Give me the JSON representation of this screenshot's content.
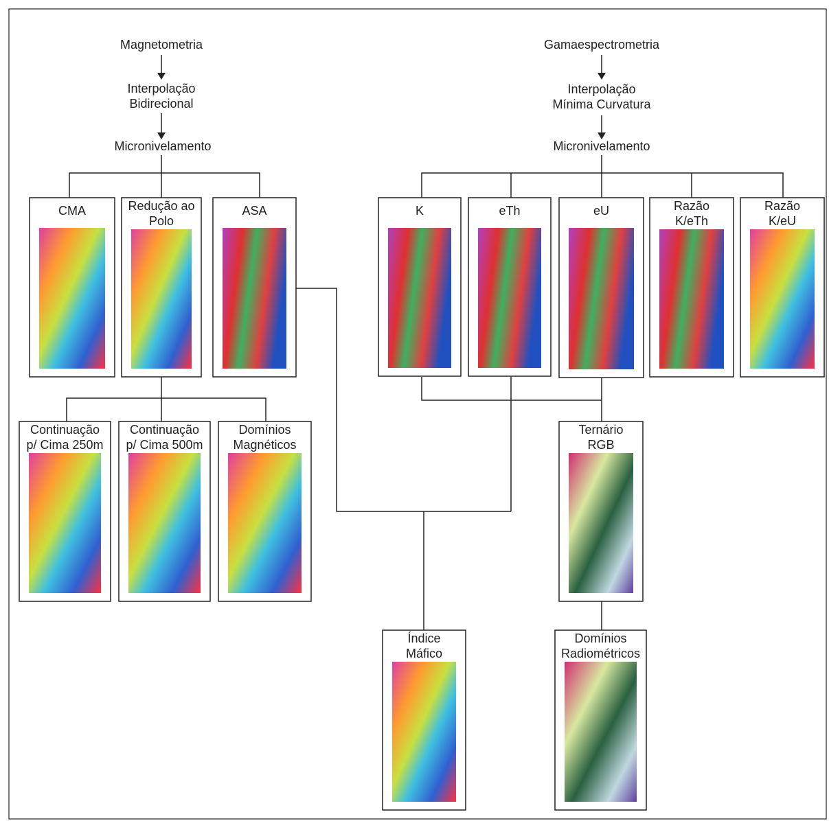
{
  "texts": [
    [
      "Magnetometria"
    ],
    [
      "Interpolação",
      "Bidirecional"
    ],
    [
      "Micronivelamento"
    ],
    [
      "Gamaespectrometria"
    ],
    [
      "Interpolação",
      "Mínima Curvatura"
    ],
    [
      "Micronivelamento"
    ]
  ],
  "panels": [
    [
      "CMA"
    ],
    [
      "Redução ao",
      "Polo"
    ],
    [
      "ASA"
    ],
    [
      "K"
    ],
    [
      "eTh"
    ],
    [
      "eU"
    ],
    [
      "Razão",
      "K/eTh"
    ],
    [
      "Razão",
      "K/eU"
    ],
    [
      "Continuação",
      "p/ Cima 250m"
    ],
    [
      "Continuação",
      "p/ Cima 500m"
    ],
    [
      "Domínios",
      "Magnéticos"
    ],
    [
      "Ternário",
      "RGB"
    ],
    [
      "Índice",
      "Máfico"
    ],
    [
      "Domínios",
      "Radiométricos"
    ]
  ]
}
